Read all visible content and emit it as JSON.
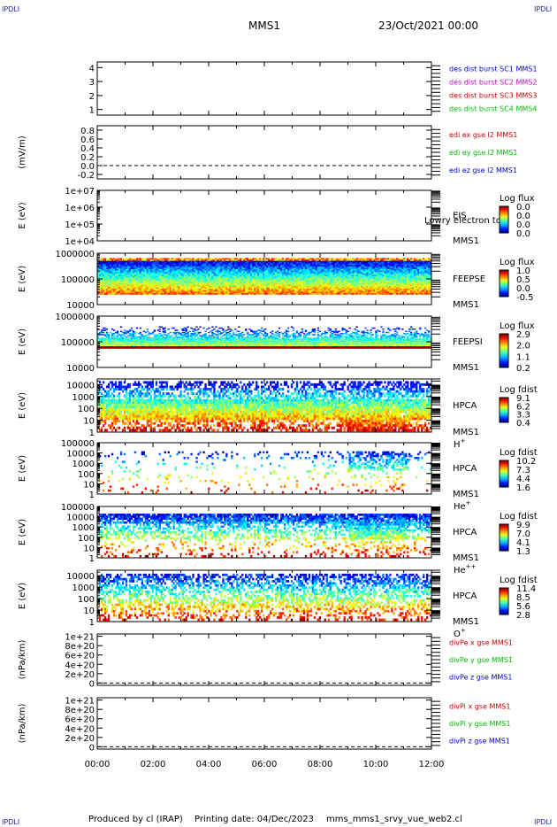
{
  "header": {
    "corner_label": "IPDLI",
    "spacecraft": "MMS1",
    "date": "23/Oct/2021 00:00"
  },
  "footer": {
    "produced_by": "Produced by cl (IRAP)",
    "printing_date": "Printing date: 04/Dec/2023",
    "script": "mms_mms1_srvy_vue_web2.cl"
  },
  "colors": {
    "mms1": "#0000cc",
    "mms2": "#cc00cc",
    "mms3": "#cc0000",
    "mms4": "#00bb00",
    "x": "#cc0000",
    "y": "#00bb00",
    "z": "#0000cc"
  },
  "chart_data": {
    "type": "multi-panel time series",
    "xaxis": {
      "ticks": [
        "00:00",
        "02:00",
        "04:00",
        "06:00",
        "08:00",
        "10:00",
        "12:00"
      ],
      "range_hours": [
        0,
        12
      ]
    },
    "panels": [
      {
        "id": "des-burst",
        "type": "line",
        "ytick_labels": [
          "4",
          "3",
          "2",
          "1"
        ],
        "ytick_values": [
          4,
          3,
          2,
          1
        ],
        "ylim": [
          0.6,
          4.4
        ],
        "ylabel": "",
        "legend": [
          "des dist burst SC1 MMS1",
          "des dist burst SC2 MMS2",
          "des dist burst SC3 MMS3",
          "des dist burst SC4 MMS4"
        ],
        "legend_colors": [
          "#0000cc",
          "#cc00cc",
          "#cc0000",
          "#00bb00"
        ]
      },
      {
        "id": "edi",
        "type": "line",
        "ytick_labels": [
          "0.8",
          "0.6",
          "0.4",
          "0.2",
          "0.0",
          "-0.2"
        ],
        "ytick_values": [
          0.8,
          0.6,
          0.4,
          0.2,
          0.0,
          -0.2
        ],
        "ylim": [
          -0.3,
          0.9
        ],
        "ylabel": "(mV/m)",
        "zero_line": 0,
        "legend": [
          "edi ex gse l2 MMS1",
          "edi ey gse l2 MMS1",
          "edi ez gse l2 MMS1"
        ],
        "legend_colors": [
          "#cc0000",
          "#00bb00",
          "#0000cc"
        ]
      },
      {
        "id": "eis",
        "type": "heatmap",
        "log_y": true,
        "ytick_labels": [
          "1e+07",
          "1e+06",
          "1e+05",
          "1e+04"
        ],
        "ytick_values": [
          10000000.0,
          1000000.0,
          100000.0,
          10000.0
        ],
        "ylim": [
          10000.0,
          10000000.0
        ],
        "ylabel": "E (eV)",
        "right_labels": [
          "EIS",
          "MMS1"
        ],
        "note": "Lowry electron tof",
        "colorbar": {
          "title": "Log flux",
          "ticks": [
            "0.0",
            "0.0",
            "0.0",
            "0.0"
          ]
        },
        "fill": "none"
      },
      {
        "id": "feepse",
        "type": "heatmap",
        "log_y": true,
        "ytick_labels": [
          "1000000",
          "100000",
          "10000"
        ],
        "ytick_values": [
          1000000.0,
          100000.0,
          10000.0
        ],
        "ylim": [
          10000.0,
          1000000.0
        ],
        "ylabel": "E (eV)",
        "right_labels": [
          "FEEPSE",
          "MMS1"
        ],
        "colorbar": {
          "title": "Log flux",
          "ticks": [
            "1.0",
            "0.5",
            "0.0",
            "-0.5"
          ]
        },
        "fill": "dense_decreasing",
        "energy_range": [
          25000.0,
          650000.0
        ]
      },
      {
        "id": "feepsi",
        "type": "heatmap",
        "log_y": true,
        "ytick_labels": [
          "1000000",
          "100000",
          "10000"
        ],
        "ytick_values": [
          1000000.0,
          100000.0,
          10000.0
        ],
        "ylim": [
          10000.0,
          1000000.0
        ],
        "ylabel": "E (eV)",
        "right_labels": [
          "FEEPSI",
          "MMS1"
        ],
        "colorbar": {
          "title": "Log flux",
          "ticks": [
            "2.9",
            "2.0",
            "1.1",
            "0.2"
          ]
        },
        "fill": "ion_band",
        "energy_range": [
          55000.0,
          400000.0
        ]
      },
      {
        "id": "hpca-h",
        "type": "heatmap",
        "log_y": true,
        "ytick_labels": [
          "10000",
          "1000",
          "100",
          "10",
          "1"
        ],
        "ytick_values": [
          10000.0,
          1000.0,
          100.0,
          10.0,
          1
        ],
        "ylim": [
          1,
          30000.0
        ],
        "ylabel": "E (eV)",
        "right_labels": [
          "HPCA",
          "MMS1"
        ],
        "species": "H",
        "species_sup": "+",
        "colorbar": {
          "title": "Log fdist",
          "ticks": [
            "9.1",
            "6.2",
            "3.3",
            "0.4"
          ]
        },
        "fill": "hpca_dense"
      },
      {
        "id": "hpca-he",
        "type": "heatmap",
        "log_y": true,
        "ytick_labels": [
          "100000",
          "10000",
          "1000",
          "100",
          "10",
          "1"
        ],
        "ytick_values": [
          100000.0,
          10000.0,
          1000.0,
          100.0,
          10.0,
          1
        ],
        "ylim": [
          1,
          100000.0
        ],
        "ylabel": "E (eV)",
        "right_labels": [
          "HPCA",
          "MMS1"
        ],
        "species": "He",
        "species_sup": "+",
        "colorbar": {
          "title": "Log fdist",
          "ticks": [
            "10.2",
            "7.3",
            "4.4",
            "1.6"
          ]
        },
        "fill": "sparse"
      },
      {
        "id": "hpca-he2",
        "type": "heatmap",
        "log_y": true,
        "ytick_labels": [
          "100000",
          "10000",
          "1000",
          "100",
          "10",
          "1"
        ],
        "ytick_values": [
          100000.0,
          10000.0,
          1000.0,
          100.0,
          10.0,
          1
        ],
        "ylim": [
          1,
          100000.0
        ],
        "ylabel": "E (eV)",
        "right_labels": [
          "HPCA",
          "MMS1"
        ],
        "species": "He",
        "species_sup": "++",
        "colorbar": {
          "title": "Log fdist",
          "ticks": [
            "9.9",
            "7.0",
            "4.1",
            "1.3"
          ]
        },
        "fill": "medium"
      },
      {
        "id": "hpca-o",
        "type": "heatmap",
        "log_y": true,
        "ytick_labels": [
          "10000",
          "1000",
          "100",
          "10",
          "1"
        ],
        "ytick_values": [
          10000.0,
          1000.0,
          100.0,
          10.0,
          1
        ],
        "ylim": [
          1,
          30000.0
        ],
        "ylabel": "E (eV)",
        "right_labels": [
          "HPCA",
          "MMS1"
        ],
        "species": "O",
        "species_sup": "+",
        "colorbar": {
          "title": "Log fdist",
          "ticks": [
            "11.4",
            "8.5",
            "5.6",
            "2.8"
          ]
        },
        "fill": "medium_o"
      },
      {
        "id": "divpe",
        "type": "line",
        "ytick_labels": [
          "1e+21",
          "8e+20",
          "6e+20",
          "4e+20",
          "2e+20",
          "0"
        ],
        "ytick_values": [
          1e+21,
          8e+20,
          6e+20,
          4e+20,
          2e+20,
          0
        ],
        "ylim": [
          -5e+19,
          1.05e+21
        ],
        "ylabel": "(nPa/km)",
        "zero_line": 0,
        "legend": [
          "divPe x gse MMS1",
          "divPe y gse MMS1",
          "divPe z gse MMS1"
        ],
        "legend_colors": [
          "#cc0000",
          "#00bb00",
          "#0000cc"
        ]
      },
      {
        "id": "divpi",
        "type": "line",
        "ytick_labels": [
          "1e+21",
          "8e+20",
          "6e+20",
          "4e+20",
          "2e+20",
          "0"
        ],
        "ytick_values": [
          1e+21,
          8e+20,
          6e+20,
          4e+20,
          2e+20,
          0
        ],
        "ylim": [
          -5e+19,
          1.05e+21
        ],
        "ylabel": "(nPa/km)",
        "zero_line": 0,
        "legend": [
          "divPi x gse MMS1",
          "divPi y gse MMS1",
          "divPi z gse MMS1"
        ],
        "legend_colors": [
          "#cc0000",
          "#00bb00",
          "#0000cc"
        ]
      }
    ]
  }
}
